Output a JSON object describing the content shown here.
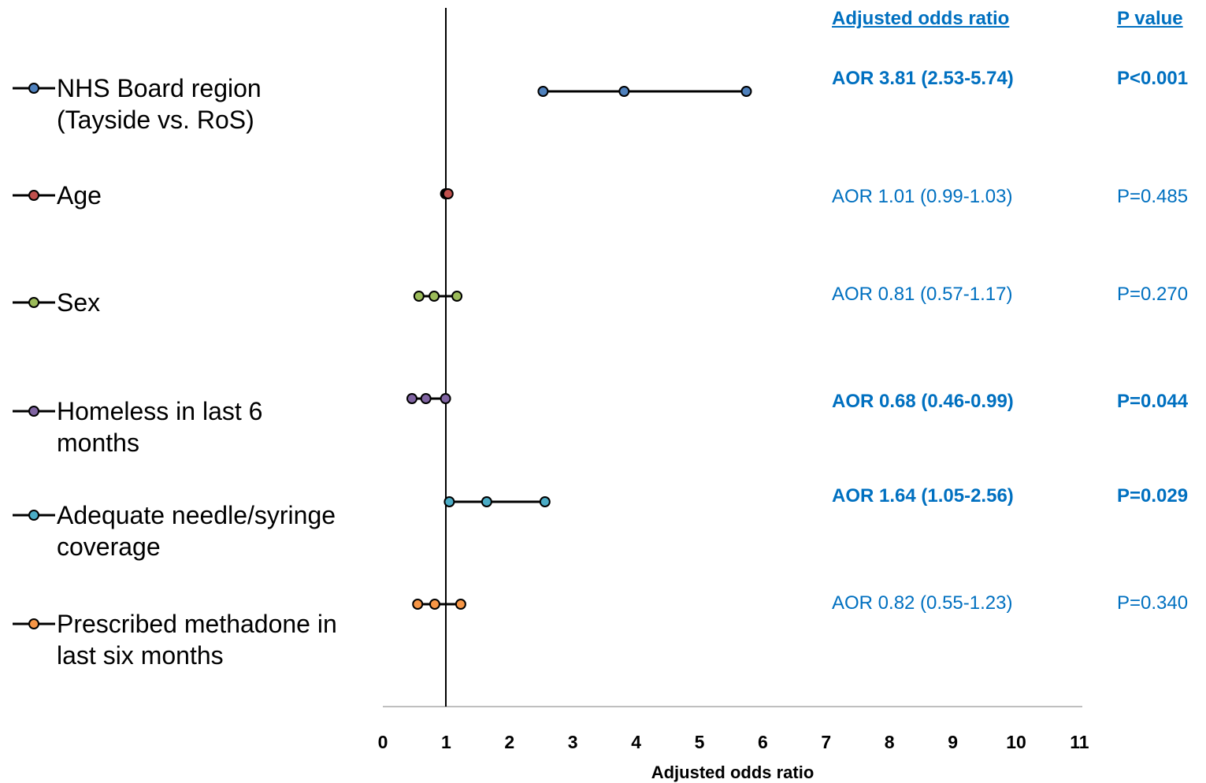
{
  "chart_data": {
    "type": "forest",
    "xlabel": "Adjusted odds ratio",
    "xlim": [
      0,
      11
    ],
    "x_ticks": [
      0,
      1,
      2,
      3,
      4,
      5,
      6,
      7,
      8,
      9,
      10,
      11
    ],
    "reference_line": 1,
    "grid": false,
    "legend_position": "left",
    "columns": {
      "aor_header": "Adjusted odds ratio",
      "p_header": "P value"
    },
    "rows": [
      {
        "label": "NHS Board region\n(Tayside vs. RoS)",
        "aor": 3.81,
        "lower": 2.53,
        "upper": 5.74,
        "color": "#4F81BD",
        "aor_text": "AOR 3.81 (2.53-5.74)",
        "p_text": "P<0.001",
        "significant": true
      },
      {
        "label": "Age",
        "aor": 1.01,
        "lower": 0.99,
        "upper": 1.03,
        "color": "#C0504D",
        "aor_text": "AOR 1.01 (0.99-1.03)",
        "p_text": "P=0.485",
        "significant": false
      },
      {
        "label": "Sex",
        "aor": 0.81,
        "lower": 0.57,
        "upper": 1.17,
        "color": "#9BBB59",
        "aor_text": "AOR 0.81 (0.57-1.17)",
        "p_text": "P=0.270",
        "significant": false
      },
      {
        "label": "Homeless in last 6\nmonths",
        "aor": 0.68,
        "lower": 0.46,
        "upper": 0.99,
        "color": "#8064A2",
        "aor_text": "AOR 0.68 (0.46-0.99)",
        "p_text": "P=0.044",
        "significant": true
      },
      {
        "label": "Adequate needle/syringe\ncoverage",
        "aor": 1.64,
        "lower": 1.05,
        "upper": 2.56,
        "color": "#4BACC6",
        "aor_text": "AOR 1.64 (1.05-2.56)",
        "p_text": "P=0.029",
        "significant": true
      },
      {
        "label": "Prescribed methadone in\nlast six months",
        "aor": 0.82,
        "lower": 0.55,
        "upper": 1.23,
        "color": "#F79646",
        "aor_text": "AOR 0.82 (0.55-1.23)",
        "p_text": "P=0.340",
        "significant": false
      }
    ],
    "text_color": "#0070C0"
  }
}
